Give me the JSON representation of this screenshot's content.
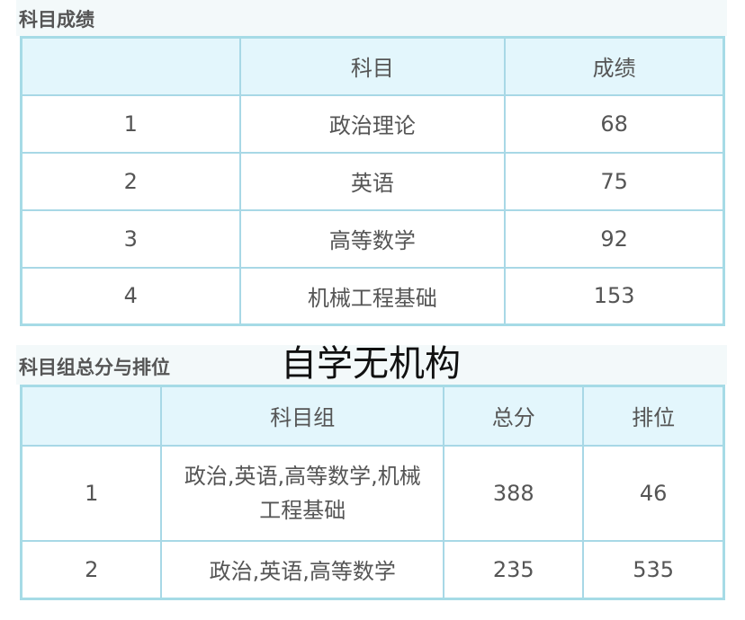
{
  "section1": {
    "title": "科目成绩",
    "headers": [
      "",
      "科目",
      "成绩"
    ],
    "rows": [
      {
        "index": "1",
        "subject": "政治理论",
        "score": "68"
      },
      {
        "index": "2",
        "subject": "英语",
        "score": "75"
      },
      {
        "index": "3",
        "subject": "高等数学",
        "score": "92"
      },
      {
        "index": "4",
        "subject": "机械工程基础",
        "score": "153"
      }
    ]
  },
  "section2": {
    "title": "科目组总分与排位",
    "headers": [
      "",
      "科目组",
      "总分",
      "排位"
    ],
    "rows": [
      {
        "index": "1",
        "group": "政治,英语,高等数学,机械工程基础",
        "total": "388",
        "rank": "46"
      },
      {
        "index": "2",
        "group": "政治,英语,高等数学",
        "total": "235",
        "rank": "535"
      }
    ]
  },
  "watermark": "自学无机构",
  "colors": {
    "border": "#a8d8e6",
    "header_bg": "#e3f6fc",
    "text": "#555555"
  }
}
